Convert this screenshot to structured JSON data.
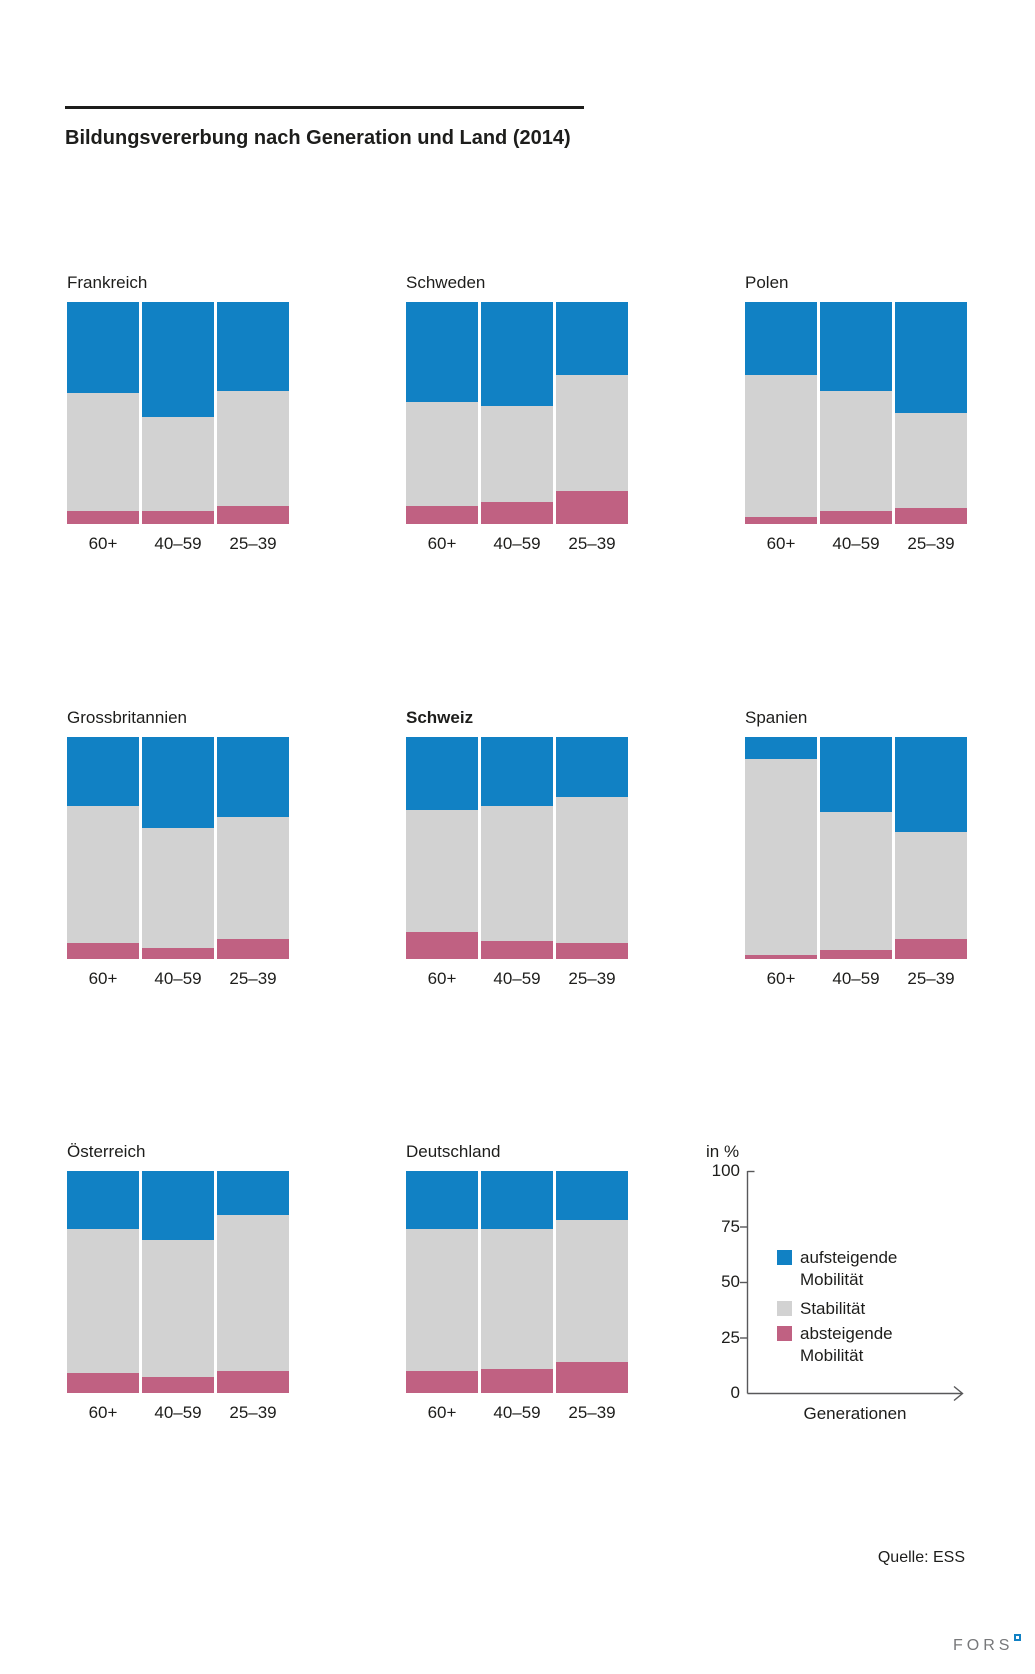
{
  "header": {
    "title": "Bildungsvererbung nach Generation und Land (2014)"
  },
  "axis": {
    "unit_label": "in %",
    "ticks": [
      "100",
      "75",
      "50",
      "25",
      "0"
    ],
    "x_label": "Generationen"
  },
  "legend": {
    "items": [
      {
        "segment": "aufsteigende_mobilitaet",
        "label": "aufsteigende\nMobilität"
      },
      {
        "segment": "stabilitaet",
        "label": "Stabilität"
      },
      {
        "segment": "absteigende_mobilitaet",
        "label": "absteigende\nMobilität"
      }
    ]
  },
  "footer": {
    "source": "Quelle: ESS",
    "logo_text": "FORS"
  },
  "chart_data": {
    "type": "bar",
    "stacked": true,
    "unit": "percent",
    "ylim": [
      0,
      100
    ],
    "categories": [
      "60+",
      "40–59",
      "25–39"
    ],
    "segments": [
      {
        "key": "aufsteigende_mobilitaet",
        "label": "aufsteigende Mobilität",
        "color": "#1181c4"
      },
      {
        "key": "stabilitaet",
        "label": "Stabilität",
        "color": "#d2d2d2"
      },
      {
        "key": "absteigende_mobilitaet",
        "label": "absteigende Mobilität",
        "color": "#c06182"
      }
    ],
    "panels": [
      {
        "country": "Frankreich",
        "bold": false,
        "values": {
          "aufsteigende_mobilitaet": [
            41,
            52,
            40
          ],
          "stabilitaet": [
            53,
            42,
            52
          ],
          "absteigende_mobilitaet": [
            6,
            6,
            8
          ]
        }
      },
      {
        "country": "Schweden",
        "bold": false,
        "values": {
          "aufsteigende_mobilitaet": [
            45,
            47,
            33
          ],
          "stabilitaet": [
            47,
            43,
            52
          ],
          "absteigende_mobilitaet": [
            8,
            10,
            15
          ]
        }
      },
      {
        "country": "Polen",
        "bold": false,
        "values": {
          "aufsteigende_mobilitaet": [
            33,
            40,
            50
          ],
          "stabilitaet": [
            64,
            54,
            43
          ],
          "absteigende_mobilitaet": [
            3,
            6,
            7
          ]
        }
      },
      {
        "country": "Grossbritannien",
        "bold": false,
        "values": {
          "aufsteigende_mobilitaet": [
            31,
            41,
            36
          ],
          "stabilitaet": [
            62,
            54,
            55
          ],
          "absteigende_mobilitaet": [
            7,
            5,
            9
          ]
        }
      },
      {
        "country": "Schweiz",
        "bold": true,
        "values": {
          "aufsteigende_mobilitaet": [
            33,
            31,
            27
          ],
          "stabilitaet": [
            55,
            61,
            66
          ],
          "absteigende_mobilitaet": [
            12,
            8,
            7
          ]
        }
      },
      {
        "country": "Spanien",
        "bold": false,
        "values": {
          "aufsteigende_mobilitaet": [
            10,
            34,
            43
          ],
          "stabilitaet": [
            88,
            62,
            48
          ],
          "absteigende_mobilitaet": [
            2,
            4,
            9
          ]
        }
      },
      {
        "country": "Österreich",
        "bold": false,
        "values": {
          "aufsteigende_mobilitaet": [
            26,
            31,
            20
          ],
          "stabilitaet": [
            65,
            62,
            70
          ],
          "absteigende_mobilitaet": [
            9,
            7,
            10
          ]
        }
      },
      {
        "country": "Deutschland",
        "bold": false,
        "values": {
          "aufsteigende_mobilitaet": [
            26,
            26,
            22
          ],
          "stabilitaet": [
            64,
            63,
            64
          ],
          "absteigende_mobilitaet": [
            10,
            11,
            14
          ]
        }
      }
    ]
  }
}
